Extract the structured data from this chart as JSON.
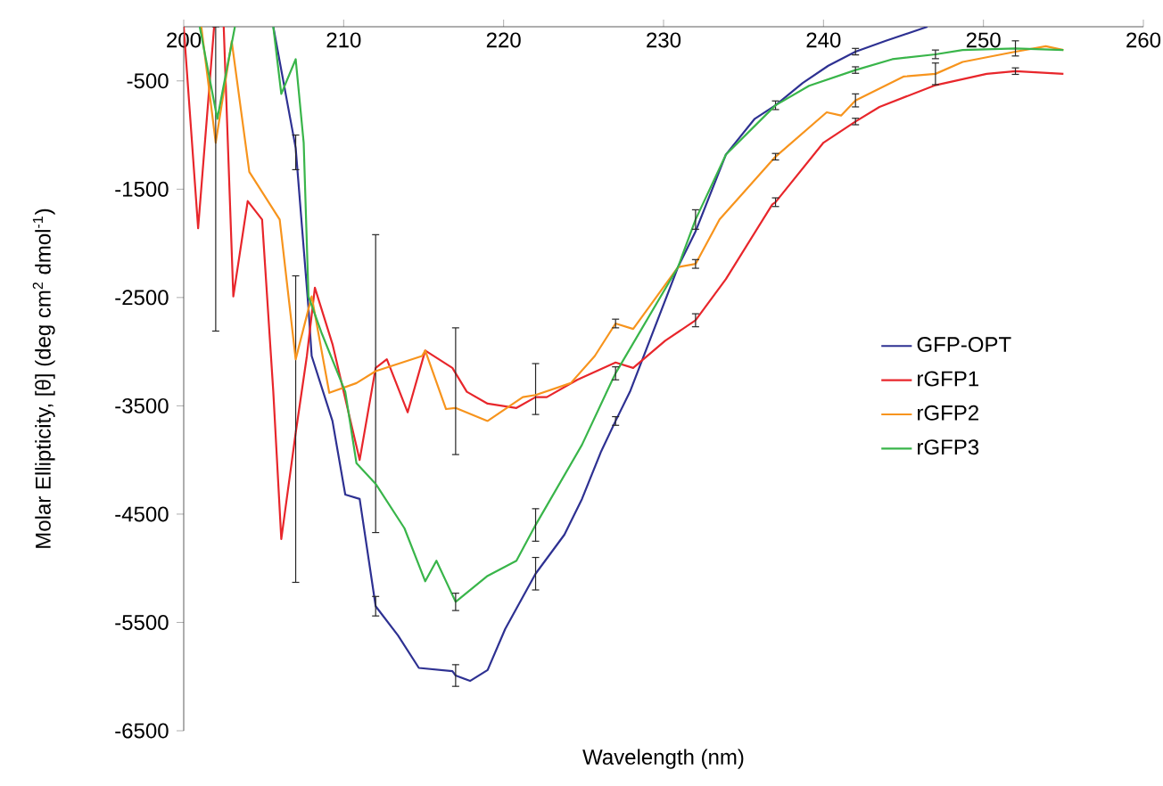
{
  "chart_data": {
    "type": "line",
    "xlabel": "Wavelength (nm)",
    "ylabel": "Molar Ellipticity, [θ] (deg cm$^{2}$ dmol$^{-1}$)",
    "xlim": [
      200,
      260
    ],
    "xticks": [
      200,
      210,
      220,
      230,
      240,
      250,
      260
    ],
    "ylim": [
      -6500,
      0
    ],
    "yticks": [
      -500,
      -1500,
      -2500,
      -3500,
      -4500,
      -5500,
      -6500
    ],
    "grid": false,
    "legend": "right",
    "marker": "none",
    "series": [
      {
        "name": "GFP-OPT",
        "color": "#2e3192",
        "x": [
          205.6,
          207,
          207.8,
          208,
          209.3,
          210.1,
          211.0,
          212,
          213.4,
          214.7,
          216.8,
          217,
          217.9,
          219.0,
          220.1,
          222,
          223.8,
          224.9,
          226.1,
          227,
          227.9,
          230.9,
          232,
          233.9,
          235.7,
          237,
          238.7,
          240.3,
          242,
          243.9,
          246.5
        ],
        "values": [
          0,
          -1120,
          -2600,
          -3040,
          -3640,
          -4320,
          -4360,
          -5350,
          -5620,
          -5920,
          -5950,
          -5990,
          -6040,
          -5940,
          -5560,
          -5050,
          -4690,
          -4360,
          -3920,
          -3640,
          -3370,
          -2220,
          -1890,
          -1180,
          -850,
          -725,
          -520,
          -360,
          -230,
          -130,
          0
        ],
        "errors": [
          null,
          [
            -1320,
            -1000
          ],
          null,
          null,
          null,
          null,
          null,
          90,
          null,
          null,
          null,
          100,
          null,
          null,
          null,
          150,
          null,
          null,
          null,
          40,
          null,
          null,
          null,
          null,
          null,
          40,
          null,
          null,
          30,
          null,
          null
        ]
      },
      {
        "name": "rGFP1",
        "color": "#e8262b",
        "x": [
          200,
          200.9,
          201.9,
          202.2,
          202.5,
          203.1,
          204,
          204.9,
          205.6,
          206.1,
          207,
          207.7,
          208.2,
          209.3,
          211,
          212,
          212.7,
          214,
          215.1,
          216.8,
          217,
          217.7,
          219,
          220.8,
          222,
          222.7,
          224.6,
          227,
          228.1,
          230.1,
          232,
          233.9,
          236.8,
          237,
          240,
          242,
          243.5,
          246.9,
          247,
          250.2,
          252,
          255
        ],
        "values": [
          0,
          -1860,
          0,
          null,
          0,
          -2490,
          -1610,
          -1780,
          -3370,
          -4730,
          -3750,
          -3040,
          -2410,
          -2930,
          -4000,
          -3150,
          -3070,
          -3560,
          -2990,
          -3150,
          -3200,
          -3370,
          -3480,
          -3520,
          -3420,
          -3420,
          -3260,
          -3100,
          -3150,
          -2900,
          -2710,
          -2330,
          -1640,
          -1620,
          -1070,
          -875,
          -740,
          -545,
          -540,
          -435,
          -410,
          -435
        ],
        "errors": [
          null,
          null,
          null,
          null,
          null,
          null,
          null,
          null,
          null,
          null,
          [
            -5130,
            -2300
          ],
          null,
          null,
          null,
          null,
          [
            -4670,
            -1920
          ],
          null,
          null,
          null,
          null,
          null,
          null,
          null,
          null,
          [
            -3580,
            -3110
          ],
          null,
          null,
          null,
          null,
          null,
          60,
          null,
          null,
          40,
          null,
          30,
          null,
          null,
          null,
          null,
          30,
          null
        ]
      },
      {
        "name": "rGFP2",
        "color": "#f7941d",
        "x": [
          201.1,
          202,
          203,
          204.1,
          206,
          207,
          208,
          209.1,
          210.8,
          212,
          214.9,
          215.1,
          216.4,
          217,
          219,
          221.2,
          222,
          224.2,
          225.7,
          227,
          228.1,
          230.9,
          232,
          233.5,
          237,
          240.2,
          241.1,
          242,
          245,
          247,
          248.7,
          252,
          253.9,
          255
        ],
        "values": [
          0,
          -1070,
          -135,
          -1340,
          -1780,
          -3070,
          -2490,
          -3380,
          -3290,
          -3180,
          -3040,
          -2990,
          -3530,
          -3520,
          -3640,
          -3420,
          -3400,
          -3290,
          -3040,
          -2740,
          -2790,
          -2220,
          -2190,
          -1780,
          -1200,
          -790,
          -820,
          -680,
          -460,
          -435,
          -325,
          -230,
          -180,
          -215
        ],
        "errors": [
          null,
          [
            -2810,
            0
          ],
          null,
          null,
          null,
          null,
          null,
          null,
          null,
          null,
          null,
          null,
          null,
          [
            -3950,
            -2780
          ],
          null,
          null,
          null,
          null,
          null,
          40,
          null,
          null,
          40,
          null,
          30,
          null,
          null,
          60,
          null,
          100,
          null,
          null,
          null,
          null
        ]
      },
      {
        "name": "rGFP3",
        "color": "#39b54a",
        "x": [
          201.0,
          202.1,
          203.2,
          204.5,
          205.6,
          206.1,
          207,
          207.5,
          207.8,
          208.6,
          210.1,
          210.8,
          212,
          213.8,
          215.1,
          215.8,
          217,
          219,
          220.8,
          222,
          224.9,
          226.8,
          227,
          230.9,
          232,
          233.9,
          237,
          239.1,
          242,
          244.3,
          247,
          248.7,
          252,
          255
        ],
        "values": [
          0,
          -850,
          0,
          null,
          0,
          -620,
          -300,
          -1070,
          -2490,
          -2820,
          -3370,
          -4030,
          -4220,
          -4630,
          -5120,
          -4930,
          -5310,
          -5070,
          -4930,
          -4600,
          -3860,
          -3260,
          -3200,
          -2220,
          -1780,
          -1180,
          -725,
          -545,
          -400,
          -300,
          -255,
          -215,
          -200,
          -215
        ],
        "errors": [
          null,
          null,
          null,
          null,
          null,
          null,
          null,
          null,
          null,
          null,
          null,
          null,
          null,
          null,
          null,
          null,
          80,
          null,
          null,
          150,
          null,
          null,
          60,
          null,
          90,
          null,
          null,
          null,
          30,
          null,
          40,
          null,
          70,
          null
        ]
      }
    ]
  }
}
